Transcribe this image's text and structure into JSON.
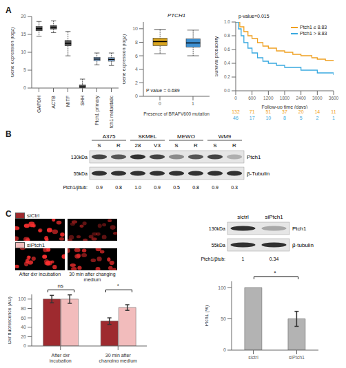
{
  "panel_labels": [
    "A",
    "B",
    "C"
  ],
  "chart_data": [
    {
      "type": "boxplot",
      "y_label": "Gene expression (log2)",
      "categories": [
        "GAPDH",
        "ACTB",
        "MITF",
        "SHH",
        "Ptch1 primary",
        "Ptch1 metastatic"
      ],
      "boxes": {
        "whislo": [
          14.5,
          15.5,
          9,
          0,
          6.5,
          6.3
        ],
        "q1": [
          16,
          16.5,
          11.8,
          0.1,
          7.6,
          7.5
        ],
        "med": [
          16.6,
          17,
          12.5,
          0.3,
          8.1,
          8
        ],
        "q3": [
          17.2,
          17.5,
          13.3,
          0.9,
          8.6,
          8.5
        ],
        "whishi": [
          18.6,
          18.8,
          15.8,
          2.5,
          9.8,
          9.8
        ]
      },
      "colors": [
        "#555555",
        "#555555",
        "#555555",
        "#555555",
        "#8ab4e0",
        "#8ab4e0"
      ],
      "ylim": [
        0,
        20
      ],
      "yticks": [
        0,
        5,
        10,
        15,
        20
      ]
    },
    {
      "type": "boxplot",
      "title": "PTCH1",
      "x_label": "Presence of BRAFV600 mutation",
      "y_label": "Gene expression (log2)",
      "categories": [
        "0",
        "1"
      ],
      "boxes": {
        "whislo": [
          6.3,
          6
        ],
        "q1": [
          7.5,
          7.3
        ],
        "med": [
          8.1,
          7.9
        ],
        "q3": [
          8.6,
          8.5
        ],
        "whishi": [
          9.9,
          9.8
        ]
      },
      "colors": [
        "#d9a520",
        "#3d8fd1"
      ],
      "ylim": [
        0,
        11
      ],
      "yticks": [
        0,
        2,
        4,
        6,
        8,
        10
      ],
      "annotations": [
        "P value = 0.689"
      ]
    },
    {
      "type": "line",
      "x_label": "Follow-up time (days)",
      "y_label": "Survival probability",
      "xlim": [
        0,
        3600
      ],
      "xticks": [
        0,
        600,
        1200,
        1800,
        2400,
        3000,
        3600
      ],
      "ylim": [
        0,
        1
      ],
      "yticks": [
        {
          "value": 0,
          "label": "0.0"
        },
        {
          "value": 0.2,
          "label": "0.2"
        },
        {
          "value": 0.4,
          "label": "0.4"
        },
        {
          "value": 0.6,
          "label": "0.6"
        },
        {
          "value": 0.8,
          "label": "0.8"
        },
        {
          "value": 1,
          "label": "1.0"
        }
      ],
      "line_style": "step",
      "legend": "upper right",
      "annotations": [
        "p-value=0.015"
      ],
      "series": [
        {
          "name": "Ptch1 ≤ 8.83",
          "color": "#f0a020",
          "x": [
            0,
            150,
            300,
            450,
            600,
            800,
            1000,
            1200,
            1500,
            1800,
            2100,
            2400,
            2800,
            3000,
            3300,
            3600
          ],
          "values": [
            1,
            0.93,
            0.86,
            0.8,
            0.76,
            0.7,
            0.65,
            0.62,
            0.58,
            0.56,
            0.53,
            0.51,
            0.48,
            0.46,
            0.44,
            0.43
          ]
        },
        {
          "name": "Ptch1 > 8.83",
          "color": "#39a9e0",
          "x": [
            0,
            100,
            200,
            300,
            450,
            600,
            800,
            1000,
            1200,
            1500,
            1800,
            2400,
            3000,
            3600
          ],
          "values": [
            1,
            0.9,
            0.8,
            0.7,
            0.62,
            0.55,
            0.48,
            0.43,
            0.4,
            0.37,
            0.34,
            0.3,
            0.26,
            0.23
          ]
        }
      ],
      "at_risk": {
        "x": [
          0,
          600,
          1200,
          1800,
          2400,
          3000,
          3600
        ],
        "values": [
          [
            132,
            71,
            51,
            37,
            20,
            14,
            11
          ],
          [
            46,
            17,
            10,
            8,
            5,
            2,
            1
          ]
        ]
      }
    },
    {
      "type": "bar",
      "y_label": "Dxr fluorescence (AU)",
      "categories": [
        "After dxr incubation",
        "30 min after changing medium"
      ],
      "ylim": [
        0,
        110
      ],
      "yticks": [
        0,
        20,
        40,
        60,
        80,
        100
      ],
      "series": [
        {
          "name": "siCtrl",
          "color": "#9e2a2f",
          "values": [
            100,
            53
          ],
          "errors": [
            8,
            7
          ]
        },
        {
          "name": "siPtch1",
          "color": "#f2bcbc",
          "values": [
            100,
            82
          ],
          "errors": [
            9,
            6
          ]
        }
      ],
      "annotations": [
        "ns",
        "*"
      ]
    },
    {
      "type": "bar",
      "y_label": "Ptch1 (%)",
      "categories": [
        "sictrl",
        "siPtch1"
      ],
      "values": [
        100,
        50
      ],
      "errors": [
        0,
        12
      ],
      "color": "#b3b3b3",
      "ylim": [
        0,
        110
      ],
      "yticks": [
        0,
        50,
        100
      ],
      "annotations": [
        "*"
      ]
    }
  ],
  "blots": [
    {
      "lanes": [
        {
          "group": "A375",
          "labels": [
            "S",
            "R"
          ]
        },
        {
          "group": "SKMEL",
          "labels": [
            "28",
            "V3"
          ]
        },
        {
          "group": "MEWO",
          "labels": [
            "S",
            "R"
          ]
        },
        {
          "group": "WM9",
          "labels": [
            "S",
            "R"
          ]
        }
      ],
      "bands": [
        {
          "name": "Ptch1",
          "size": "130kDa"
        },
        {
          "name": "β-Tubulin",
          "size": "55kDa"
        }
      ],
      "ratio_label": "Ptch1/βtub:",
      "ratios": [
        0.9,
        0.8,
        1.0,
        0.9,
        0.5,
        0.8,
        0.9,
        0.3
      ]
    },
    {
      "lanes": [
        {
          "labels": [
            "sictrl",
            "siPtch1"
          ]
        }
      ],
      "bands": [
        {
          "name": "Ptch1",
          "size": "130kDa"
        },
        {
          "name": "β-tubulin",
          "size": "55kDa"
        }
      ],
      "ratio_label": "Ptch1/βtub:",
      "ratios": [
        1,
        0.34
      ]
    }
  ]
}
